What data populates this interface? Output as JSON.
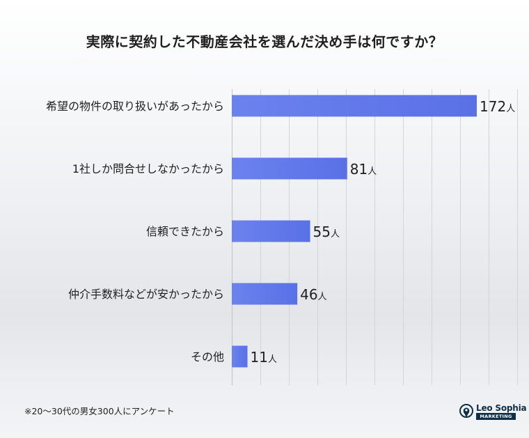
{
  "chart_data": {
    "type": "bar",
    "orientation": "horizontal",
    "title": "実際に契約した不動産会社を選んだ決め手は何ですか？",
    "categories": [
      "希望の物件の取り扱いがあったから",
      "1社しか問合せしなかったから",
      "信頼できたから",
      "仲介手数料などが安かったから",
      "その他"
    ],
    "values": [
      172,
      81,
      55,
      46,
      11
    ],
    "value_labels": [
      "172人",
      "81人",
      "55人",
      "46人",
      "11人"
    ],
    "xlim": [
      0,
      200
    ],
    "grid": true,
    "bar_color": "#6b82ee",
    "bar_color_dark": "#5a70e6"
  },
  "footnote": "※20〜30代の男女300人にアンケート",
  "logo": {
    "name": "Leo Sophia",
    "tagline": "MARKETING",
    "icon": "lion-head-icon",
    "color": "#0e2f45"
  }
}
